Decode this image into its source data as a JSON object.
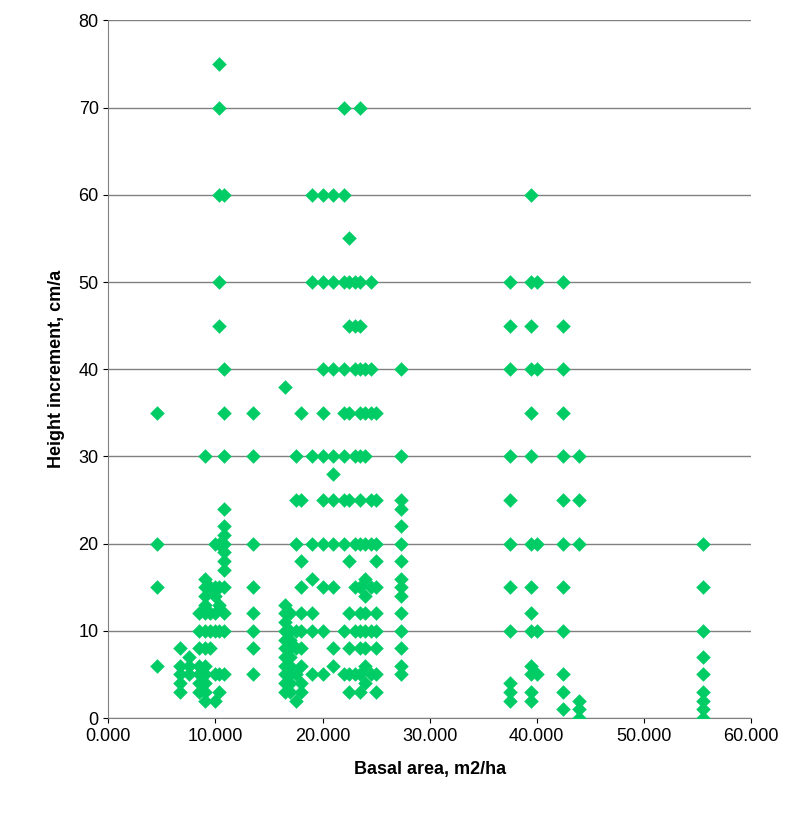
{
  "chart_data": {
    "type": "scatter",
    "x_label": "Basal area, m2/ha",
    "y_label": "Height increment, cm/a",
    "color": "#00cc66",
    "marker": "diamond",
    "grid": true,
    "xlim": [
      0,
      60
    ],
    "xticks": [
      {
        "value": 0,
        "label": "0.000"
      },
      {
        "value": 10,
        "label": "10.000"
      },
      {
        "value": 20,
        "label": "20.000"
      },
      {
        "value": 30,
        "label": "30.000"
      },
      {
        "value": 40,
        "label": "40.000"
      },
      {
        "value": 50,
        "label": "50.000"
      },
      {
        "value": 60,
        "label": "60.000"
      }
    ],
    "ylim": [
      0,
      80
    ],
    "yticks": [
      0,
      10,
      20,
      30,
      40,
      50,
      60,
      70,
      80
    ],
    "x": [
      4.5,
      4.5,
      4.5,
      4.5,
      6.7,
      6.7,
      6.7,
      6.7,
      6.7,
      7.5,
      7.5,
      7.5,
      8.5,
      8.5,
      8.5,
      8.5,
      8.5,
      8.5,
      8.5,
      9,
      9,
      9,
      9,
      9,
      9,
      9,
      9,
      9,
      9,
      9,
      9,
      9,
      9.5,
      9.5,
      9.5,
      9.5,
      10,
      10,
      10,
      10,
      10,
      10,
      10,
      10.3,
      10.3,
      10.3,
      10.3,
      10.3,
      10.3,
      10.3,
      10.3,
      10.3,
      10.3,
      10.3,
      10.8,
      10.8,
      10.8,
      10.8,
      10.8,
      10.8,
      10.8,
      10.8,
      10.8,
      10.8,
      10.8,
      10.8,
      10.8,
      10.8,
      10.8,
      13.5,
      13.5,
      13.5,
      13.5,
      13.5,
      13.5,
      13.5,
      13.5,
      16.5,
      16.5,
      16.5,
      16.5,
      16.5,
      16.5,
      16.5,
      16.5,
      16.5,
      16.5,
      16.5,
      16.5,
      17,
      17,
      17,
      17,
      17,
      17,
      17,
      17,
      17,
      17.5,
      17.5,
      17.5,
      17.5,
      17.5,
      17.5,
      17.5,
      18,
      18,
      18,
      18,
      18,
      18,
      18,
      18,
      18,
      18,
      19,
      19,
      19,
      19,
      19,
      19,
      19,
      19,
      20,
      20,
      20,
      20,
      20,
      20,
      20,
      20,
      20,
      20,
      21,
      21,
      21,
      21,
      21,
      21,
      21,
      21,
      21,
      21,
      22,
      22,
      22,
      22,
      22,
      22,
      22,
      22,
      22,
      22,
      22.5,
      22.5,
      22.5,
      22.5,
      22.5,
      22.5,
      22.5,
      22.5,
      22.5,
      22.5,
      23,
      23,
      23,
      23,
      23,
      23,
      23,
      23,
      23.5,
      23.5,
      23.5,
      23.5,
      23.5,
      23.5,
      23.5,
      23.5,
      23.5,
      23.5,
      23.5,
      23.5,
      23.5,
      23.5,
      24,
      24,
      24,
      24,
      24,
      24,
      24,
      24,
      24,
      24,
      24,
      24.5,
      24.5,
      24.5,
      24.5,
      24.5,
      24.5,
      24.5,
      24.5,
      25,
      25,
      25,
      25,
      25,
      25,
      25,
      25,
      25,
      25,
      27.3,
      27.3,
      27.3,
      27.3,
      27.3,
      27.3,
      27.3,
      27.3,
      27.3,
      27.3,
      27.3,
      27.3,
      27.3,
      27.3,
      27.3,
      37.5,
      37.5,
      37.5,
      37.5,
      37.5,
      37.5,
      37.5,
      37.5,
      37.5,
      37.5,
      37.5,
      39.5,
      39.5,
      39.5,
      39.5,
      39.5,
      39.5,
      39.5,
      39.5,
      39.5,
      39.5,
      39.5,
      39.5,
      39.5,
      39.5,
      40,
      40,
      40,
      40,
      40,
      42.5,
      42.5,
      42.5,
      42.5,
      42.5,
      42.5,
      42.5,
      42.5,
      42.5,
      42.5,
      42.5,
      42.5,
      44,
      44,
      44,
      44,
      44,
      44,
      55.5,
      55.5,
      55.5,
      55.5,
      55.5,
      55.5,
      55.5,
      55.5,
      55.5
    ],
    "values": [
      35,
      20,
      15,
      6,
      8,
      6,
      5,
      4,
      3,
      7,
      6,
      5,
      12,
      10,
      8,
      6,
      5,
      4,
      3,
      30,
      16,
      15,
      14,
      13,
      12,
      10,
      8,
      6,
      5,
      4,
      3,
      2,
      15,
      12,
      10,
      8,
      20,
      15,
      14,
      12,
      10,
      5,
      2,
      75,
      70,
      60,
      50,
      45,
      20,
      15,
      13,
      10,
      5,
      3,
      60,
      40,
      35,
      30,
      24,
      22,
      21,
      20,
      19,
      18,
      17,
      15,
      12,
      10,
      5,
      35,
      30,
      20,
      15,
      12,
      10,
      8,
      5,
      38,
      13,
      12,
      11,
      10,
      9,
      8,
      7,
      6,
      5,
      4,
      3,
      12,
      10,
      9,
      8,
      7,
      6,
      5,
      4,
      3,
      30,
      25,
      20,
      10,
      8,
      5,
      2,
      35,
      25,
      18,
      15,
      12,
      10,
      8,
      6,
      4,
      3,
      60,
      50,
      30,
      20,
      16,
      12,
      10,
      5,
      60,
      50,
      40,
      35,
      30,
      25,
      20,
      15,
      10,
      5,
      60,
      50,
      40,
      30,
      28,
      25,
      20,
      15,
      8,
      6,
      70,
      60,
      50,
      40,
      35,
      30,
      25,
      20,
      10,
      5,
      55,
      50,
      45,
      35,
      25,
      18,
      12,
      8,
      5,
      3,
      50,
      45,
      40,
      30,
      20,
      15,
      10,
      5,
      70,
      50,
      45,
      40,
      35,
      30,
      25,
      20,
      15,
      12,
      10,
      8,
      5,
      3,
      40,
      35,
      30,
      20,
      16,
      14,
      12,
      10,
      8,
      6,
      4,
      50,
      40,
      35,
      25,
      20,
      15,
      10,
      5,
      35,
      25,
      20,
      18,
      15,
      12,
      10,
      8,
      5,
      3,
      40,
      30,
      25,
      24,
      22,
      20,
      18,
      16,
      15,
      14,
      12,
      10,
      8,
      6,
      5,
      50,
      45,
      40,
      30,
      25,
      20,
      15,
      10,
      4,
      3,
      2,
      60,
      50,
      45,
      40,
      35,
      30,
      20,
      15,
      12,
      10,
      6,
      5,
      3,
      2,
      50,
      40,
      20,
      10,
      5,
      50,
      45,
      40,
      35,
      30,
      25,
      20,
      15,
      10,
      5,
      3,
      1,
      30,
      25,
      20,
      2,
      1,
      0,
      20,
      15,
      10,
      7,
      5,
      3,
      2,
      1,
      0
    ]
  }
}
